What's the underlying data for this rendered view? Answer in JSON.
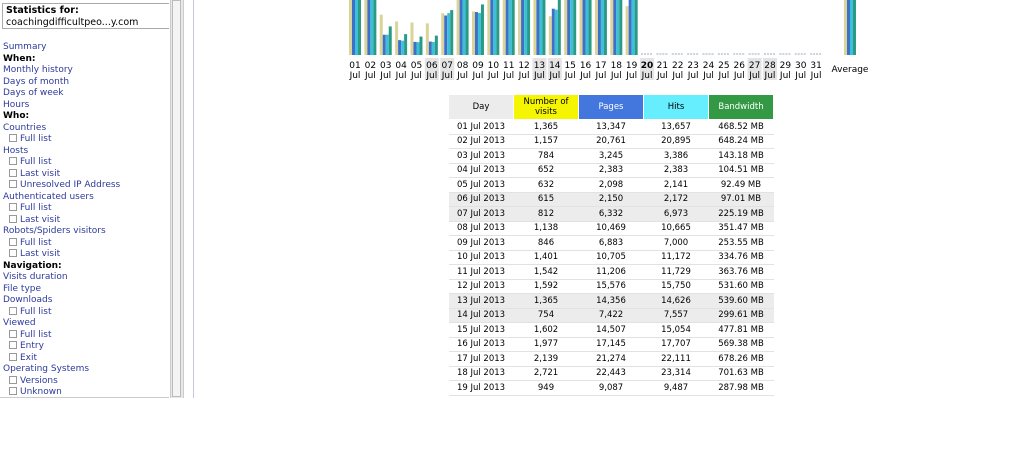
{
  "sidebar": {
    "stats_label": "Statistics for:",
    "site": "coachingdifficultpeo...y.com",
    "items": [
      {
        "text": "Summary",
        "kind": "link"
      },
      {
        "text": "When:",
        "kind": "heading"
      },
      {
        "text": "Monthly history",
        "kind": "link"
      },
      {
        "text": "Days of month",
        "kind": "link"
      },
      {
        "text": "Days of week",
        "kind": "link"
      },
      {
        "text": "Hours",
        "kind": "link"
      },
      {
        "text": "Who:",
        "kind": "heading"
      },
      {
        "text": "Countries",
        "kind": "link"
      },
      {
        "text": "Full list",
        "kind": "sub"
      },
      {
        "text": "Hosts",
        "kind": "link"
      },
      {
        "text": "Full list",
        "kind": "sub"
      },
      {
        "text": "Last visit",
        "kind": "sub"
      },
      {
        "text": "Unresolved IP Address",
        "kind": "sub"
      },
      {
        "text": "Authenticated users",
        "kind": "link"
      },
      {
        "text": "Full list",
        "kind": "sub"
      },
      {
        "text": "Last visit",
        "kind": "sub"
      },
      {
        "text": "Robots/Spiders visitors",
        "kind": "link"
      },
      {
        "text": "Full list",
        "kind": "sub"
      },
      {
        "text": "Last visit",
        "kind": "sub"
      },
      {
        "text": "Navigation:",
        "kind": "heading"
      },
      {
        "text": "Visits duration",
        "kind": "link"
      },
      {
        "text": "File type",
        "kind": "link"
      },
      {
        "text": "Downloads",
        "kind": "link"
      },
      {
        "text": "Full list",
        "kind": "sub"
      },
      {
        "text": "Viewed",
        "kind": "link"
      },
      {
        "text": "Full list",
        "kind": "sub"
      },
      {
        "text": "Entry",
        "kind": "sub"
      },
      {
        "text": "Exit",
        "kind": "sub"
      },
      {
        "text": "Operating Systems",
        "kind": "link"
      },
      {
        "text": "Versions",
        "kind": "sub"
      },
      {
        "text": "Unknown",
        "kind": "sub"
      }
    ]
  },
  "chart": {
    "average_label": "Average",
    "days": [
      {
        "day": "01",
        "month": "Jul"
      },
      {
        "day": "02",
        "month": "Jul"
      },
      {
        "day": "03",
        "month": "Jul"
      },
      {
        "day": "04",
        "month": "Jul"
      },
      {
        "day": "05",
        "month": "Jul"
      },
      {
        "day": "06",
        "month": "Jul",
        "weekend": true
      },
      {
        "day": "07",
        "month": "Jul",
        "weekend": true
      },
      {
        "day": "08",
        "month": "Jul"
      },
      {
        "day": "09",
        "month": "Jul"
      },
      {
        "day": "10",
        "month": "Jul"
      },
      {
        "day": "11",
        "month": "Jul"
      },
      {
        "day": "12",
        "month": "Jul"
      },
      {
        "day": "13",
        "month": "Jul",
        "weekend": true
      },
      {
        "day": "14",
        "month": "Jul",
        "weekend": true
      },
      {
        "day": "15",
        "month": "Jul"
      },
      {
        "day": "16",
        "month": "Jul"
      },
      {
        "day": "17",
        "month": "Jul"
      },
      {
        "day": "18",
        "month": "Jul"
      },
      {
        "day": "19",
        "month": "Jul"
      },
      {
        "day": "20",
        "month": "Jul",
        "weekend": true,
        "today": true
      },
      {
        "day": "21",
        "month": "Jul"
      },
      {
        "day": "22",
        "month": "Jul"
      },
      {
        "day": "23",
        "month": "Jul"
      },
      {
        "day": "24",
        "month": "Jul"
      },
      {
        "day": "25",
        "month": "Jul"
      },
      {
        "day": "26",
        "month": "Jul"
      },
      {
        "day": "27",
        "month": "Jul",
        "weekend": true
      },
      {
        "day": "28",
        "month": "Jul",
        "weekend": true
      },
      {
        "day": "29",
        "month": "Jul"
      },
      {
        "day": "30",
        "month": "Jul"
      },
      {
        "day": "31",
        "month": "Jul"
      }
    ]
  },
  "table": {
    "headers": [
      {
        "text": "Day",
        "color": "#ececec"
      },
      {
        "text": "Number of visits",
        "color": "#f5f500"
      },
      {
        "text": "Pages",
        "color": "#4477dd"
      },
      {
        "text": "Hits",
        "color": "#66eeff"
      },
      {
        "text": "Bandwidth",
        "color": "#339944"
      }
    ],
    "bar_colors": [
      "#d9d49a",
      "#3f6fc8",
      "#3cc0d8",
      "#2a9a86"
    ],
    "rows": [
      {
        "cells": [
          "01 Jul 2013",
          "1,365",
          "13,347",
          "13,657",
          "468.52 MB"
        ]
      },
      {
        "cells": [
          "02 Jul 2013",
          "1,157",
          "20,761",
          "20,895",
          "648.24 MB"
        ]
      },
      {
        "cells": [
          "03 Jul 2013",
          "784",
          "3,245",
          "3,386",
          "143.18 MB"
        ]
      },
      {
        "cells": [
          "04 Jul 2013",
          "652",
          "2,383",
          "2,383",
          "104.51 MB"
        ]
      },
      {
        "cells": [
          "05 Jul 2013",
          "632",
          "2,098",
          "2,141",
          "92.49 MB"
        ]
      },
      {
        "cells": [
          "06 Jul 2013",
          "615",
          "2,150",
          "2,172",
          "97.01 MB"
        ],
        "weekend": true
      },
      {
        "cells": [
          "07 Jul 2013",
          "812",
          "6,332",
          "6,973",
          "225.19 MB"
        ],
        "weekend": true
      },
      {
        "cells": [
          "08 Jul 2013",
          "1,138",
          "10,469",
          "10,665",
          "351.47 MB"
        ]
      },
      {
        "cells": [
          "09 Jul 2013",
          "846",
          "6,883",
          "7,000",
          "253.55 MB"
        ]
      },
      {
        "cells": [
          "10 Jul 2013",
          "1,401",
          "10,705",
          "11,172",
          "334.76 MB"
        ]
      },
      {
        "cells": [
          "11 Jul 2013",
          "1,542",
          "11,206",
          "11,729",
          "363.76 MB"
        ]
      },
      {
        "cells": [
          "12 Jul 2013",
          "1,592",
          "15,576",
          "15,750",
          "531.60 MB"
        ]
      },
      {
        "cells": [
          "13 Jul 2013",
          "1,365",
          "14,356",
          "14,626",
          "539.60 MB"
        ],
        "weekend": true
      },
      {
        "cells": [
          "14 Jul 2013",
          "754",
          "7,422",
          "7,557",
          "299.61 MB"
        ],
        "weekend": true
      },
      {
        "cells": [
          "15 Jul 2013",
          "1,602",
          "14,507",
          "15,054",
          "477.81 MB"
        ]
      },
      {
        "cells": [
          "16 Jul 2013",
          "1,977",
          "17,145",
          "17,707",
          "569.38 MB"
        ]
      },
      {
        "cells": [
          "17 Jul 2013",
          "2,139",
          "21,274",
          "22,111",
          "678.26 MB"
        ]
      },
      {
        "cells": [
          "18 Jul 2013",
          "2,721",
          "22,443",
          "23,314",
          "701.63 MB"
        ]
      },
      {
        "cells": [
          "19 Jul 2013",
          "949",
          "9,087",
          "9,487",
          "287.98 MB"
        ]
      }
    ]
  }
}
